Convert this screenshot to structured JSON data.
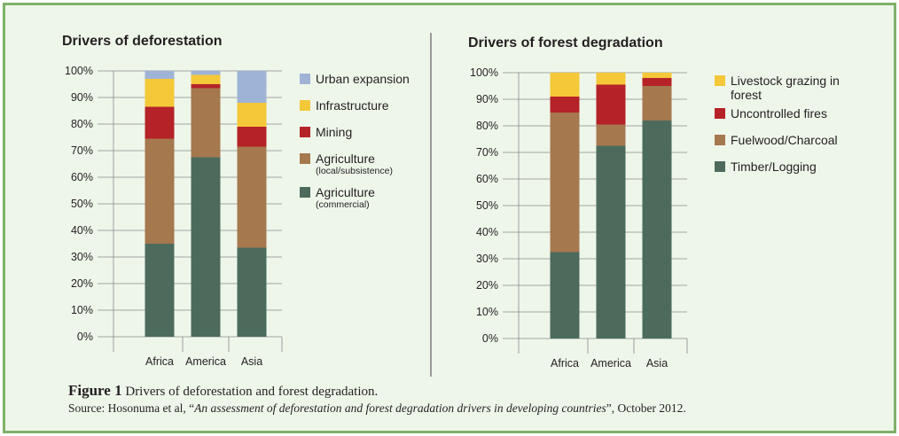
{
  "colors": {
    "urban": "#9fb3d6",
    "infrastructure": "#f4c838",
    "mining": "#b52228",
    "agri_local": "#a6784e",
    "agri_commercial": "#4c6b5d",
    "livestock": "#f4c838",
    "fires": "#b52228",
    "fuelwood": "#a6784e",
    "timber": "#4c6b5d",
    "frame": "#7fb069",
    "background": "#eef6ea"
  },
  "chart_data": [
    {
      "type": "bar",
      "stacked": true,
      "title": "Drivers of deforestation",
      "categories": [
        "Africa",
        "America",
        "Asia"
      ],
      "ylim": [
        0,
        100
      ],
      "yticks": [
        "0%",
        "10%",
        "20%",
        "30%",
        "40%",
        "50%",
        "60%",
        "70%",
        "80%",
        "90%",
        "100%"
      ],
      "grid": true,
      "legend_position": "right",
      "series": [
        {
          "key": "agri_commercial",
          "name": "Agriculture",
          "sub": "(commercial)",
          "values": [
            35,
            67.5,
            33.5
          ]
        },
        {
          "key": "agri_local",
          "name": "Agriculture",
          "sub": "(local/subsistence)",
          "values": [
            39.5,
            26,
            38
          ]
        },
        {
          "key": "mining",
          "name": "Mining",
          "values": [
            12,
            1.5,
            7.5
          ]
        },
        {
          "key": "infrastructure",
          "name": "Infrastructure",
          "values": [
            10.5,
            3.5,
            9
          ]
        },
        {
          "key": "urban",
          "name": "Urban expansion",
          "values": [
            3,
            1.5,
            12
          ]
        }
      ]
    },
    {
      "type": "bar",
      "stacked": true,
      "title": "Drivers of forest degradation",
      "categories": [
        "Africa",
        "America",
        "Asia"
      ],
      "ylim": [
        0,
        100
      ],
      "yticks": [
        "0%",
        "10%",
        "20%",
        "30%",
        "40%",
        "50%",
        "60%",
        "70%",
        "80%",
        "90%",
        "100%"
      ],
      "grid": true,
      "legend_position": "right",
      "series": [
        {
          "key": "timber",
          "name": "Timber/Logging",
          "values": [
            32.5,
            72.5,
            82
          ]
        },
        {
          "key": "fuelwood",
          "name": "Fuelwood/Charcoal",
          "values": [
            52.5,
            8,
            13
          ]
        },
        {
          "key": "fires",
          "name": "Uncontrolled fires",
          "values": [
            6,
            15,
            3
          ]
        },
        {
          "key": "livestock",
          "name": "Livestock grazing in forest",
          "values": [
            9,
            4.5,
            2
          ]
        }
      ]
    }
  ],
  "legend_left": [
    {
      "key": "urban",
      "label": "Urban expansion",
      "sub": ""
    },
    {
      "key": "infrastructure",
      "label": "Infrastructure",
      "sub": ""
    },
    {
      "key": "mining",
      "label": "Mining",
      "sub": ""
    },
    {
      "key": "agri_local",
      "label": "Agriculture",
      "sub": "(local/subsistence)"
    },
    {
      "key": "agri_commercial",
      "label": "Agriculture",
      "sub": "(commercial)"
    }
  ],
  "legend_right": [
    {
      "key": "livestock",
      "label": "Livestock grazing in forest",
      "sub": ""
    },
    {
      "key": "fires",
      "label": "Uncontrolled fires",
      "sub": ""
    },
    {
      "key": "fuelwood",
      "label": "Fuelwood/Charcoal",
      "sub": ""
    },
    {
      "key": "timber",
      "label": "Timber/Logging",
      "sub": ""
    }
  ],
  "caption": {
    "figure_label": "Figure 1",
    "figure_text": " Drivers of deforestation and forest degradation.",
    "source_prefix": "Source: Hosonuma et al, “",
    "source_title": "An assessment of deforestation and forest degradation drivers in developing countries",
    "source_suffix": "”, October 2012."
  }
}
